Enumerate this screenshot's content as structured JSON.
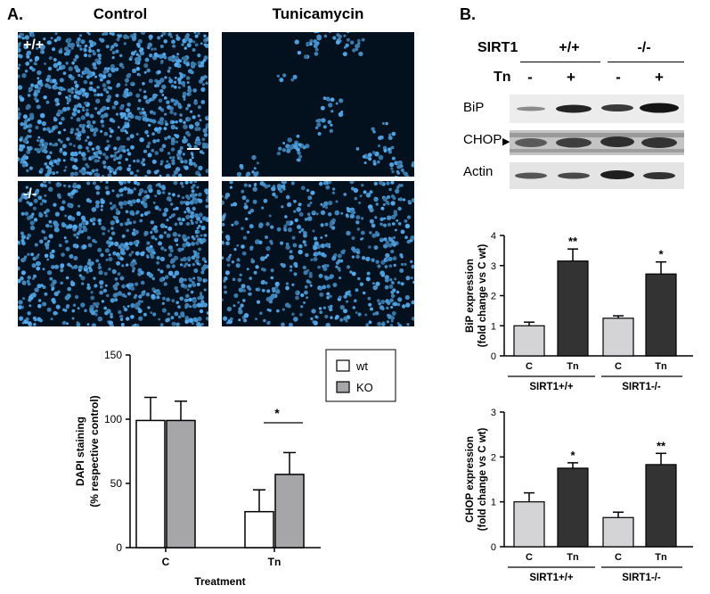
{
  "panelA": {
    "label": "A.",
    "col_control": "Control",
    "col_tunicamycin": "Tunicamycin",
    "row_wt": "+/+",
    "row_ko": "-/-"
  },
  "panelB": {
    "label": "B.",
    "header_sirt1": "SIRT1",
    "header_wt": "+/+",
    "header_ko": "-/-",
    "header_tn": "Tn",
    "tn_signs": [
      "-",
      "+",
      "-",
      "+"
    ],
    "blot_bip": "BiP",
    "blot_chop": "CHOP",
    "blot_actin": "Actin"
  },
  "chart_data": [
    {
      "id": "dapi",
      "type": "bar",
      "categories": [
        "C",
        "Tn"
      ],
      "series": [
        {
          "name": "wt",
          "values": [
            99,
            28
          ],
          "errors": [
            18,
            17
          ],
          "color": "#ffffff"
        },
        {
          "name": "KO",
          "values": [
            99,
            57
          ],
          "errors": [
            15,
            17
          ],
          "color": "#a6a6a8"
        }
      ],
      "ylabel_line1": "DAPI staining",
      "ylabel_line2": "(% respective control)",
      "xlabel": "Treatment",
      "ylim": [
        0,
        150
      ],
      "yticks": [
        "0",
        "50",
        "100",
        "150"
      ],
      "significance": "*",
      "legend_position": "top-right"
    },
    {
      "id": "bip",
      "type": "bar",
      "categories": [
        "C",
        "Tn",
        "C",
        "Tn"
      ],
      "values": [
        1.0,
        3.15,
        1.25,
        2.72
      ],
      "errors": [
        0.12,
        0.4,
        0.08,
        0.4
      ],
      "stars": [
        "",
        "**",
        "",
        "*"
      ],
      "colors": [
        "#d4d4d6",
        "#333333",
        "#d4d4d6",
        "#333333"
      ],
      "groups": [
        "SIRT1+/+",
        "SIRT1-/-"
      ],
      "ylabel_line1": "BiP expression",
      "ylabel_line2": "(fold change vs C wt)",
      "ylim": [
        0,
        4
      ],
      "yticks": [
        "0",
        "1",
        "2",
        "3",
        "4"
      ]
    },
    {
      "id": "chop",
      "type": "bar",
      "categories": [
        "C",
        "Tn",
        "C",
        "Tn"
      ],
      "values": [
        1.0,
        1.75,
        0.65,
        1.83
      ],
      "errors": [
        0.2,
        0.12,
        0.12,
        0.25
      ],
      "stars": [
        "",
        "*",
        "",
        "**"
      ],
      "colors": [
        "#d4d4d6",
        "#333333",
        "#d4d4d6",
        "#333333"
      ],
      "groups": [
        "SIRT1+/+",
        "SIRT1-/-"
      ],
      "ylabel_line1": "CHOP expression",
      "ylabel_line2": "(fold change vs C wt)",
      "ylim": [
        0,
        3
      ],
      "yticks": [
        "0",
        "1",
        "2",
        "3"
      ]
    }
  ]
}
